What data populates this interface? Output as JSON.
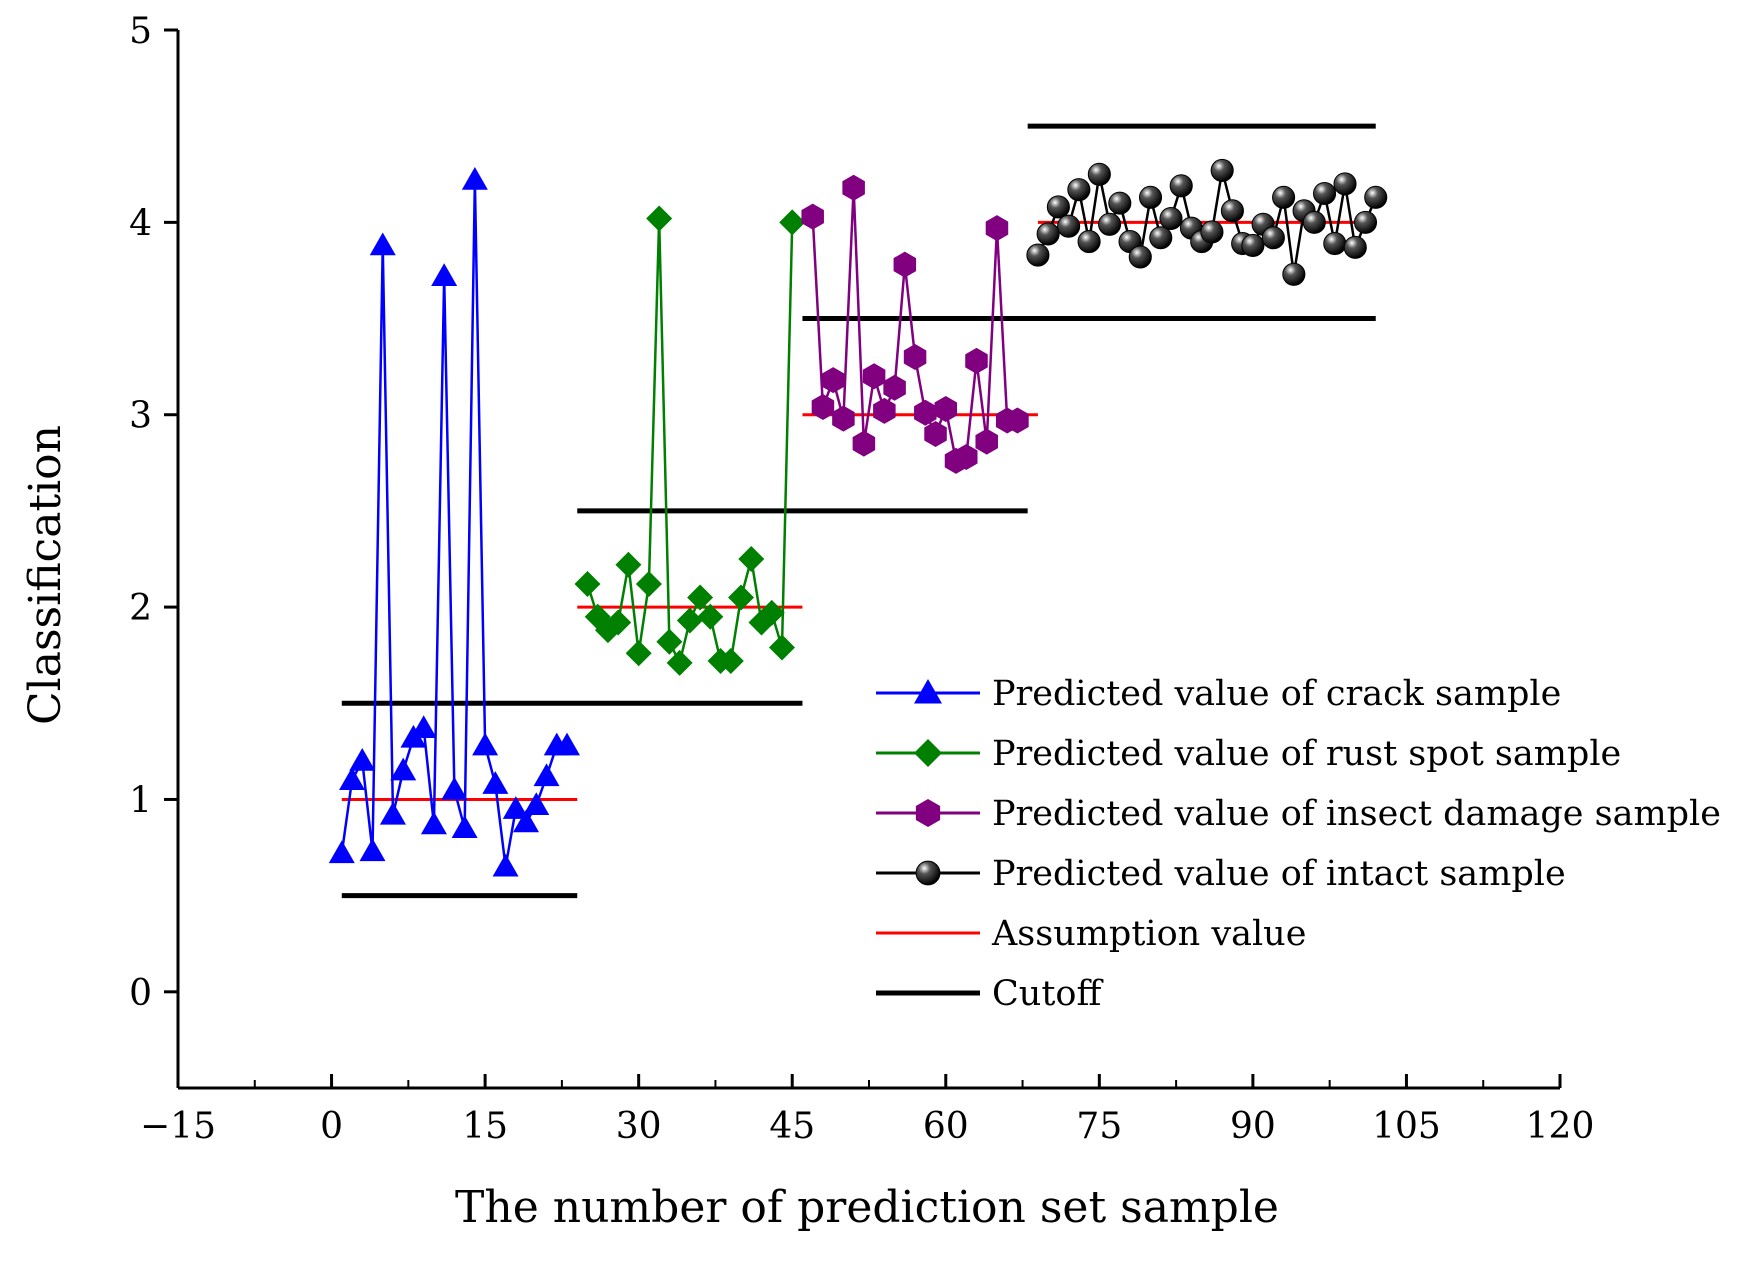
{
  "chart_data": {
    "type": "scatter",
    "xlabel": "The number of prediction set sample",
    "ylabel": "Classification",
    "xlim": [
      -15,
      120
    ],
    "ylim": [
      -0.5,
      5
    ],
    "x_ticks": [
      -15,
      0,
      15,
      30,
      45,
      60,
      75,
      90,
      105,
      120
    ],
    "x_tick_labels": [
      "−15",
      "0",
      "15",
      "30",
      "45",
      "60",
      "75",
      "90",
      "105",
      "120"
    ],
    "y_ticks": [
      0,
      1,
      2,
      3,
      4,
      5
    ],
    "y_tick_labels": [
      "0",
      "1",
      "2",
      "3",
      "4",
      "5"
    ],
    "legend_position": "bottom-right",
    "series": [
      {
        "name": "Predicted value of crack sample",
        "color": "#0000ff",
        "marker": "triangle",
        "x": [
          1,
          2,
          3,
          4,
          5,
          6,
          7,
          8,
          9,
          10,
          11,
          12,
          13,
          14,
          15,
          16,
          17,
          18,
          19,
          20,
          21,
          22,
          23
        ],
        "y": [
          0.72,
          1.1,
          1.2,
          0.73,
          3.88,
          0.92,
          1.15,
          1.32,
          1.37,
          0.87,
          3.72,
          1.05,
          0.85,
          4.22,
          1.28,
          1.08,
          0.65,
          0.95,
          0.88,
          0.97,
          1.12,
          1.28,
          1.28
        ]
      },
      {
        "name": "Predicted value of rust spot sample",
        "color": "#008000",
        "marker": "diamond",
        "x": [
          25,
          26,
          27,
          28,
          29,
          30,
          31,
          32,
          33,
          34,
          35,
          36,
          37,
          38,
          39,
          40,
          41,
          42,
          43,
          44,
          45
        ],
        "y": [
          2.12,
          1.95,
          1.88,
          1.92,
          2.22,
          1.76,
          2.12,
          4.02,
          1.82,
          1.71,
          1.93,
          2.05,
          1.95,
          1.72,
          1.72,
          2.05,
          2.25,
          1.92,
          1.97,
          1.79,
          4.0
        ]
      },
      {
        "name": "Predicted value of insect damage sample",
        "color": "#800080",
        "marker": "hexagon",
        "x": [
          47,
          48,
          49,
          50,
          51,
          52,
          53,
          54,
          55,
          56,
          57,
          58,
          59,
          60,
          61,
          62,
          63,
          64,
          65,
          66,
          67
        ],
        "y": [
          4.03,
          3.04,
          3.18,
          2.98,
          4.18,
          2.85,
          3.2,
          3.02,
          3.14,
          3.78,
          3.3,
          3.01,
          2.9,
          3.03,
          2.76,
          2.78,
          3.28,
          2.86,
          3.97,
          2.97,
          2.97
        ]
      },
      {
        "name": "Predicted value of intact sample",
        "color": "#000000",
        "marker": "sphere",
        "x": [
          69,
          70,
          71,
          72,
          73,
          74,
          75,
          76,
          77,
          78,
          79,
          80,
          81,
          82,
          83,
          84,
          85,
          86,
          87,
          88,
          89,
          90,
          91,
          92,
          93,
          94,
          95,
          96,
          97,
          98,
          99,
          100,
          101,
          102
        ],
        "y": [
          3.83,
          3.94,
          4.08,
          3.98,
          4.17,
          3.9,
          4.25,
          3.99,
          4.1,
          3.9,
          3.82,
          4.13,
          3.92,
          4.02,
          4.19,
          3.97,
          3.9,
          3.95,
          4.27,
          4.06,
          3.89,
          3.88,
          3.99,
          3.92,
          4.13,
          3.73,
          4.06,
          4.0,
          4.15,
          3.89,
          4.2,
          3.87,
          4.0,
          4.13
        ]
      }
    ],
    "assumption": {
      "name": "Assumption value",
      "color": "#ff0000",
      "segments": [
        {
          "x": [
            1,
            24
          ],
          "y": 1
        },
        {
          "x": [
            24,
            46
          ],
          "y": 2
        },
        {
          "x": [
            46,
            69
          ],
          "y": 3
        },
        {
          "x": [
            69,
            102
          ],
          "y": 4
        }
      ]
    },
    "cutoff": {
      "name": "Cutoff",
      "color": "#000000",
      "segments": [
        {
          "x": [
            1,
            24
          ],
          "y": 0.5
        },
        {
          "x": [
            1,
            46
          ],
          "y": 1.5
        },
        {
          "x": [
            24,
            68
          ],
          "y": 2.5
        },
        {
          "x": [
            46,
            102
          ],
          "y": 3.5
        },
        {
          "x": [
            68,
            102
          ],
          "y": 4.5
        }
      ]
    }
  }
}
